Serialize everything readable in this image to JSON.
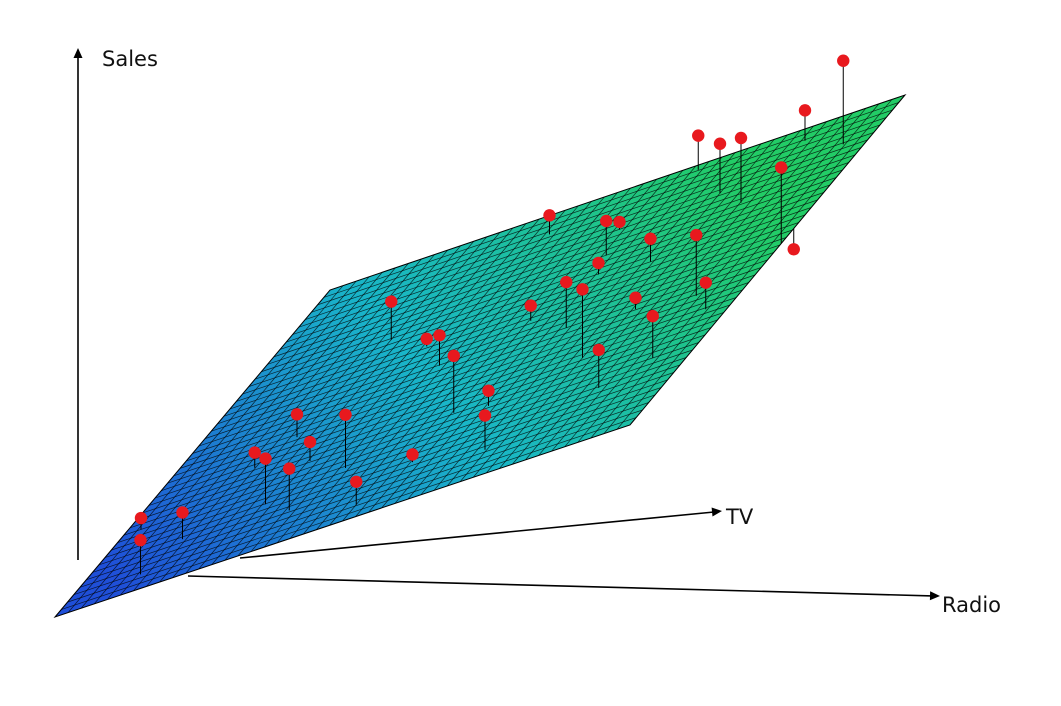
{
  "chart_data": {
    "type": "scatter",
    "subtype": "3d-regression-plane",
    "title": "",
    "axes": {
      "x": {
        "label": "TV"
      },
      "y": {
        "label": "Radio"
      },
      "z": {
        "label": "Sales"
      }
    },
    "grid": false,
    "legend": "none",
    "plane": {
      "description_free": true,
      "mesh_lines": true,
      "colors": {
        "low": "#1f4fd8",
        "mid": "#19b6c8",
        "high": "#22cc66"
      }
    },
    "points": {
      "color": "#e8191e",
      "stem_color": "#000000",
      "values": [
        [
          0.25,
          0.03,
          0.3
        ],
        [
          0.06,
          0.12,
          0.9
        ],
        [
          0.35,
          0.18,
          0.4
        ],
        [
          0.6,
          0.1,
          -0.4
        ],
        [
          0.12,
          0.35,
          1.1
        ],
        [
          0.22,
          0.4,
          1.4
        ],
        [
          0.18,
          0.28,
          1.2
        ],
        [
          0.4,
          0.35,
          -0.8
        ],
        [
          0.55,
          0.3,
          -0.6
        ],
        [
          0.7,
          0.25,
          1.0
        ],
        [
          0.3,
          0.55,
          1.5
        ],
        [
          0.45,
          0.5,
          -0.5
        ],
        [
          0.65,
          0.45,
          -0.9
        ],
        [
          0.8,
          0.4,
          -1.3
        ],
        [
          0.5,
          0.65,
          1.2
        ],
        [
          0.35,
          0.75,
          1.8
        ],
        [
          0.75,
          0.6,
          0.9
        ],
        [
          0.9,
          0.55,
          -1.0
        ],
        [
          0.6,
          0.8,
          -0.7
        ],
        [
          0.45,
          0.9,
          1.6
        ],
        [
          0.85,
          0.75,
          1.3
        ],
        [
          0.7,
          0.95,
          -1.2
        ],
        [
          0.95,
          0.85,
          0.8
        ],
        [
          0.55,
          1.0,
          2.0
        ],
        [
          1.0,
          0.2,
          -2.5
        ],
        [
          0.15,
          0.55,
          0.2
        ],
        [
          0.28,
          0.62,
          0.4
        ],
        [
          0.42,
          0.22,
          0.6
        ],
        [
          0.68,
          0.62,
          0.3
        ],
        [
          0.82,
          0.18,
          -0.3
        ],
        [
          0.2,
          0.85,
          1.0
        ],
        [
          0.38,
          0.95,
          0.7
        ],
        [
          0.62,
          0.35,
          0.2
        ],
        [
          0.78,
          0.82,
          1.7
        ],
        [
          0.92,
          0.42,
          0.5
        ],
        [
          0.1,
          0.7,
          0.9
        ],
        [
          0.5,
          0.15,
          -0.2
        ],
        [
          0.3,
          0.3,
          0.5
        ],
        [
          0.58,
          0.55,
          0.4
        ],
        [
          0.88,
          0.95,
          2.2
        ],
        [
          0.05,
          0.5,
          0.6
        ],
        [
          0.72,
          0.1,
          -0.8
        ],
        [
          0.48,
          0.78,
          0.3
        ],
        [
          0.25,
          0.92,
          1.1
        ],
        [
          0.98,
          0.65,
          0.9
        ],
        [
          0.4,
          0.62,
          -0.4
        ],
        [
          0.66,
          0.72,
          0.6
        ],
        [
          0.15,
          0.15,
          0.7
        ],
        [
          0.84,
          0.58,
          0.2
        ],
        [
          0.52,
          0.42,
          0.8
        ]
      ]
    }
  }
}
